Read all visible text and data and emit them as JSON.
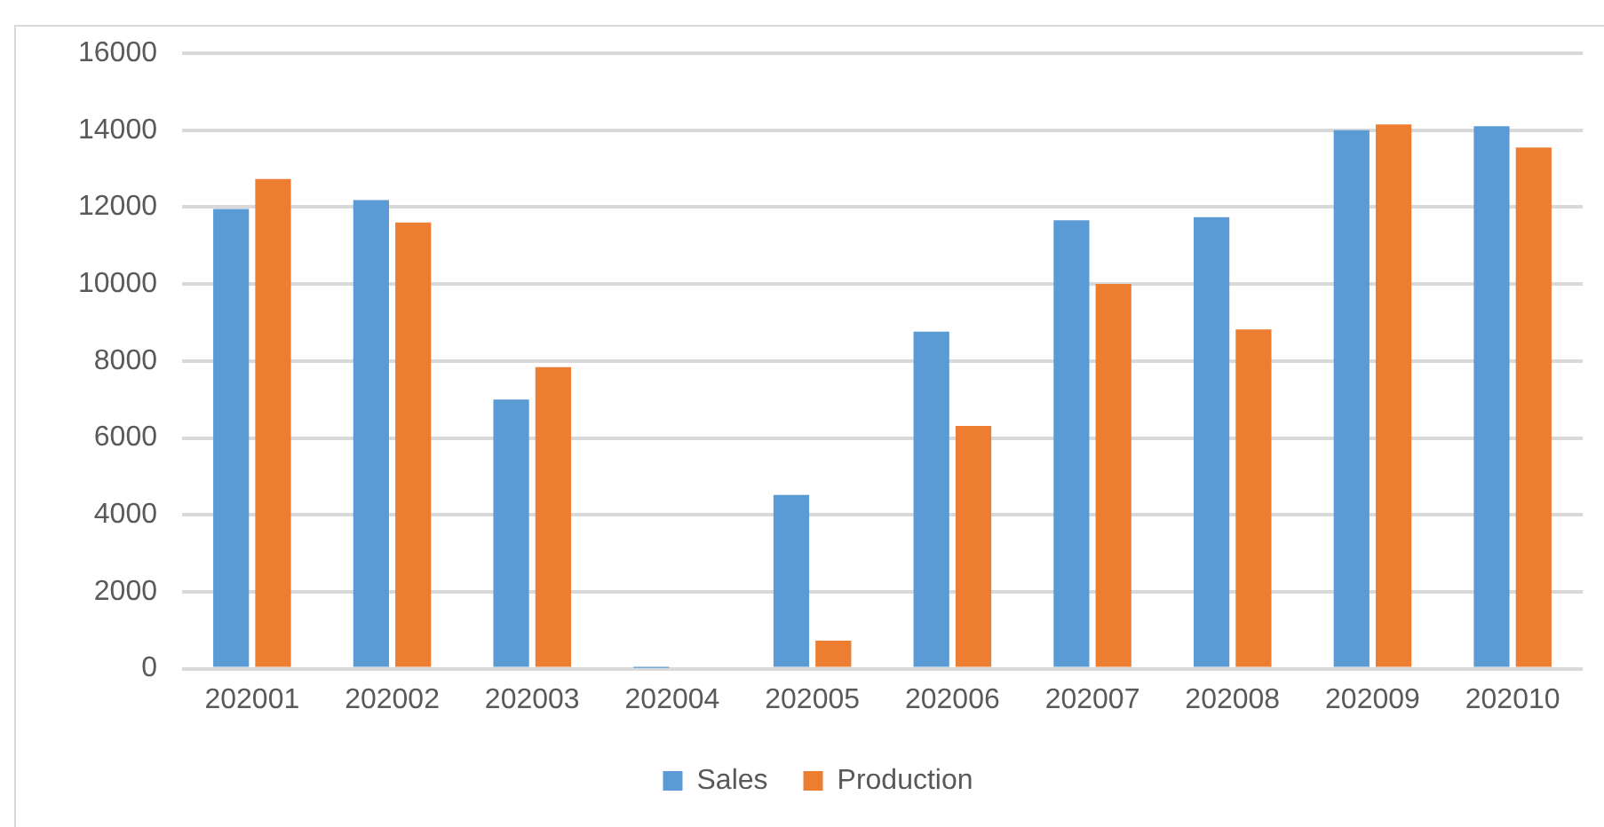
{
  "chart_data": {
    "type": "bar",
    "categories": [
      "202001",
      "202002",
      "202003",
      "202004",
      "202005",
      "202006",
      "202007",
      "202008",
      "202009",
      "202010"
    ],
    "series": [
      {
        "name": "Sales",
        "color": "#5b9bd5",
        "values": [
          11950,
          12180,
          7000,
          20,
          4520,
          8760,
          11660,
          11740,
          14000,
          14100
        ]
      },
      {
        "name": "Production",
        "color": "#ed7d31",
        "values": [
          12730,
          11600,
          7840,
          0,
          730,
          6310,
          10000,
          8820,
          14150,
          13550
        ]
      }
    ],
    "ylim": [
      0,
      16000
    ],
    "yticks": [
      0,
      2000,
      4000,
      6000,
      8000,
      10000,
      12000,
      14000,
      16000
    ],
    "grid": "y",
    "legend": "bottom"
  }
}
